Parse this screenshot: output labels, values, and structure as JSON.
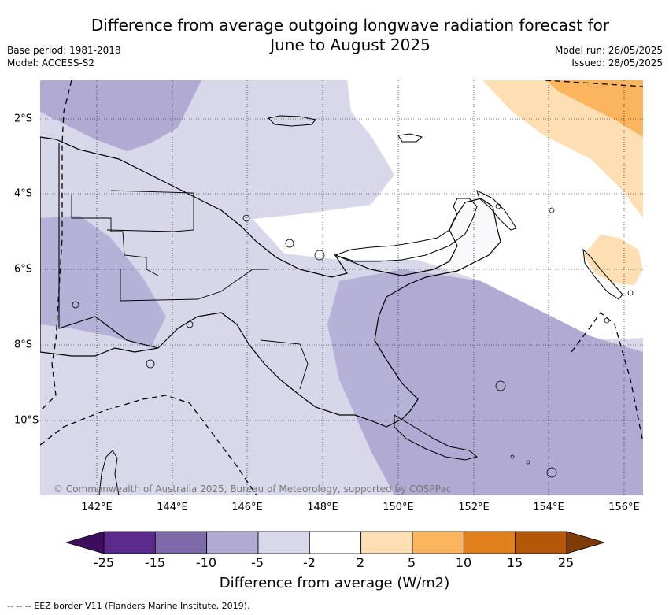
{
  "title_line1": "Difference from average outgoing longwave radiation forecast for",
  "title_line2": "June to August 2025",
  "base_period": "Base period: 1981-2018",
  "model": "Model: ACCESS-S2",
  "model_run": "Model run: 26/05/2025",
  "issued": "Issued: 28/05/2025",
  "copyright": "© Commonwealth of Australia 2025, Bureau of Meteorology, supported by COSPPac",
  "lon_ticks": [
    "142°E",
    "144°E",
    "146°E",
    "148°E",
    "150°E",
    "152°E",
    "154°E",
    "156°E"
  ],
  "lat_ticks": [
    "2°S",
    "4°S",
    "6°S",
    "8°S",
    "10°S"
  ],
  "colorbar": {
    "title": "Difference from average (W/m2)",
    "labels": [
      "-25",
      "-15",
      "-10",
      "-5",
      "-2",
      "2",
      "5",
      "10",
      "15",
      "25"
    ],
    "colors": [
      "#5b2a8c",
      "#7d6aa9",
      "#b1abd3",
      "#d8d8ea",
      "#ffffff",
      "#fddfb3",
      "#fbb55e",
      "#e0801d",
      "#b35808"
    ],
    "under_color": "#3d0c5a",
    "over_color": "#7f3b08"
  },
  "footnote": "--  --  -- EEZ border V11 (Flanders Marine Institute, 2019).",
  "colors": {
    "pos_light": "#fddfb3",
    "pos_mid": "#fbb55e",
    "neg_light": "#d8d8ea",
    "neg_mid": "#b1abd3"
  }
}
